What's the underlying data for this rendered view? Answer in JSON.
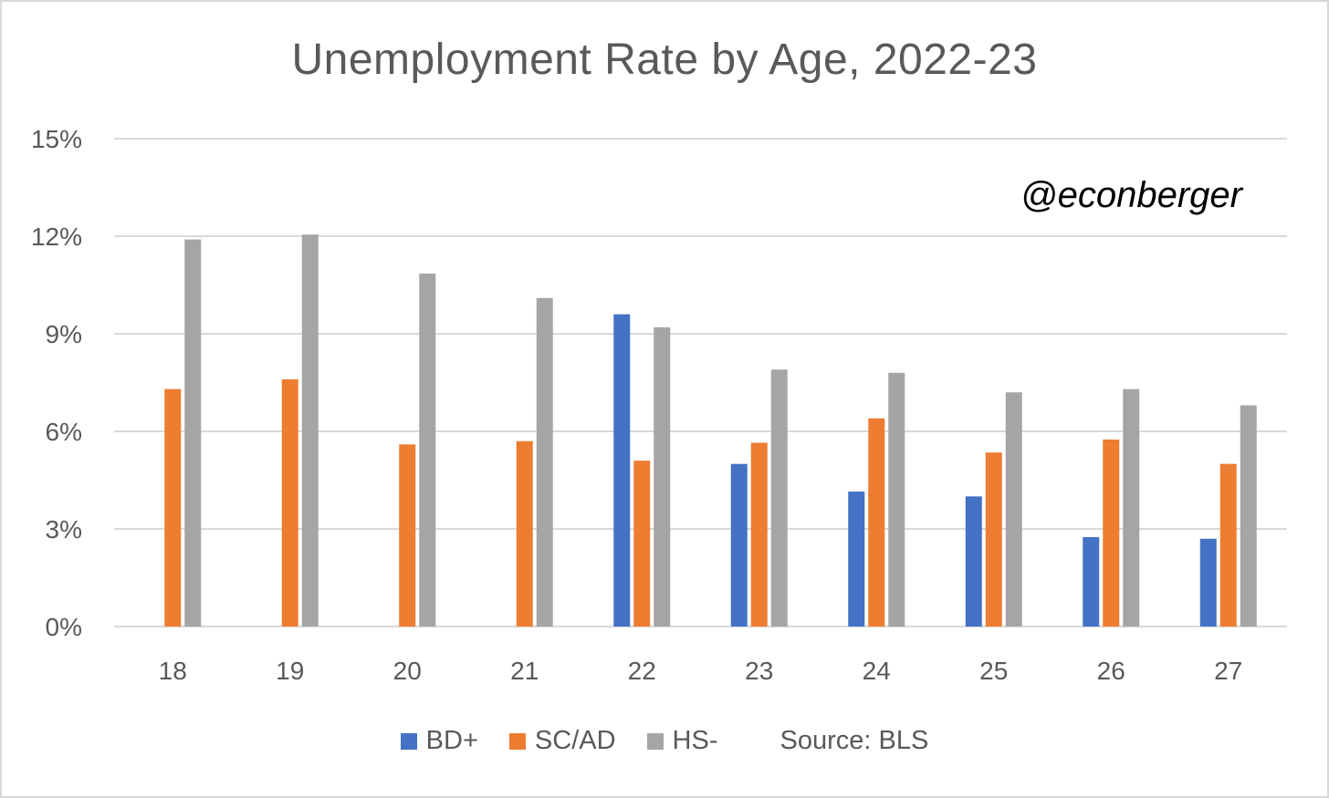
{
  "chart_data": {
    "type": "bar",
    "title": "Unemployment Rate by Age, 2022-23",
    "annotation": "@econberger",
    "source": "Source: BLS",
    "xlabel": "",
    "ylabel": "",
    "categories": [
      "18",
      "19",
      "20",
      "21",
      "22",
      "23",
      "24",
      "25",
      "26",
      "27"
    ],
    "ylim": [
      0,
      15
    ],
    "yticks": [
      0,
      3,
      6,
      9,
      12,
      15
    ],
    "ytick_labels": [
      "0%",
      "3%",
      "6%",
      "9%",
      "12%",
      "15%"
    ],
    "grid": true,
    "legend_position": "bottom",
    "series": [
      {
        "name": "BD+",
        "color": "#4472c4",
        "values": [
          null,
          null,
          null,
          null,
          9.6,
          5.0,
          4.15,
          4.0,
          2.75,
          2.7
        ]
      },
      {
        "name": "SC/AD",
        "color": "#ed7d31",
        "values": [
          7.3,
          7.6,
          5.6,
          5.7,
          5.1,
          5.65,
          6.4,
          5.35,
          5.75,
          5.0
        ]
      },
      {
        "name": "HS-",
        "color": "#a5a5a5",
        "values": [
          11.9,
          12.05,
          10.85,
          10.1,
          9.2,
          7.9,
          7.8,
          7.2,
          7.3,
          6.8
        ]
      }
    ]
  }
}
